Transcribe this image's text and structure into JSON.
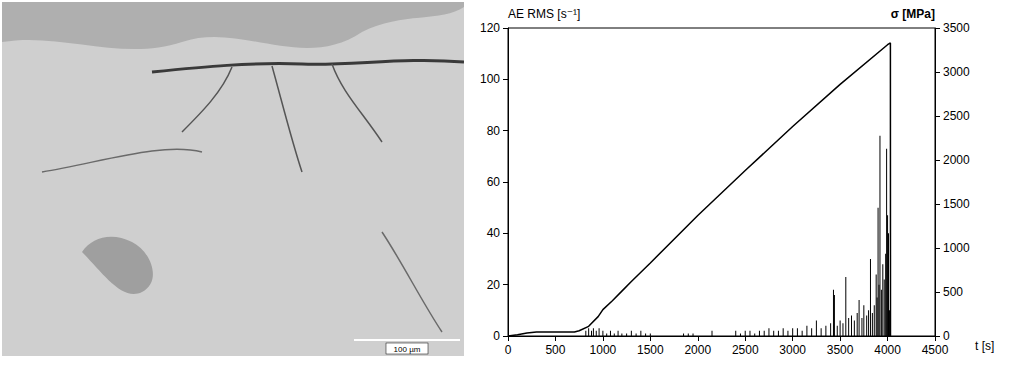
{
  "micrograph": {
    "scale_bar_label": "100 µm"
  },
  "chart_data": {
    "type": "combo",
    "xlabel": "t [s]",
    "ylabel": "AE RMS [s⁻¹]",
    "y2label": "σ [MPa]",
    "xlim": [
      0,
      4500
    ],
    "xticks": [
      0,
      500,
      1000,
      1500,
      2000,
      2500,
      3000,
      3500,
      4000,
      4500
    ],
    "ylim": [
      0,
      120
    ],
    "yticks": [
      0,
      20,
      40,
      60,
      80,
      100,
      120
    ],
    "y2lim": [
      0,
      3500
    ],
    "y2ticks": [
      0,
      500,
      1000,
      1500,
      2000,
      2500,
      3000,
      3500
    ],
    "grid": false,
    "series": [
      {
        "type": "bar",
        "color": "#000000",
        "x": [
          820,
          850,
          880,
          900,
          930,
          960,
          1000,
          1040,
          1080,
          1120,
          1160,
          1200,
          1250,
          1300,
          1350,
          1400,
          1450,
          1500,
          1850,
          1900,
          1950,
          2150,
          2400,
          2450,
          2500,
          2550,
          2600,
          2650,
          2700,
          2750,
          2800,
          2850,
          2900,
          2950,
          3000,
          3050,
          3100,
          3150,
          3200,
          3250,
          3300,
          3350,
          3400,
          3430,
          3440,
          3470,
          3500,
          3530,
          3560,
          3590,
          3620,
          3650,
          3680,
          3700,
          3730,
          3750,
          3780,
          3800,
          3820,
          3840,
          3860,
          3880,
          3890,
          3900,
          3910,
          3920,
          3935,
          3950,
          3965,
          3980,
          3990,
          4000,
          4010,
          4020
        ],
        "values": [
          2,
          3,
          2,
          3,
          2,
          3,
          2,
          1,
          2,
          1,
          2,
          1,
          1,
          2,
          1,
          2,
          1,
          1,
          1,
          1,
          1,
          2,
          2,
          1,
          2,
          2,
          1,
          2,
          2,
          3,
          2,
          2,
          3,
          2,
          3,
          3,
          2,
          4,
          3,
          6,
          3,
          4,
          5,
          18,
          16,
          4,
          6,
          5,
          23,
          7,
          8,
          6,
          9,
          14,
          7,
          12,
          8,
          10,
          30,
          9,
          12,
          24,
          15,
          50,
          20,
          78,
          18,
          28,
          22,
          32,
          73,
          47,
          40,
          10
        ]
      },
      {
        "type": "line",
        "axis": "y2",
        "color": "#000000",
        "x": [
          0,
          100,
          200,
          300,
          500,
          700,
          750,
          850,
          950,
          1000,
          1100,
          1200,
          1300,
          1500,
          2000,
          2500,
          3000,
          3500,
          4000,
          4030,
          4031
        ],
        "values": [
          0,
          15,
          35,
          45,
          45,
          45,
          60,
          110,
          220,
          300,
          400,
          510,
          620,
          830,
          1370,
          1880,
          2380,
          2860,
          3310,
          3330,
          0
        ]
      }
    ]
  }
}
